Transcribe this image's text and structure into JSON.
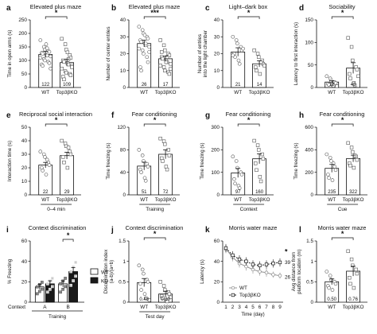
{
  "chart_data": [
    {
      "id": "a",
      "panel_letter": "a",
      "type": "bar",
      "title": "Elevated plus maze",
      "ylabel": "Time in open arms (s)",
      "ylim": [
        0,
        250
      ],
      "yticks": [
        0,
        50,
        100,
        150,
        200,
        250
      ],
      "categories": [
        "WT",
        "Top3βKO"
      ],
      "values": [
        122,
        92
      ],
      "errors": [
        11,
        13
      ],
      "n": [
        "122",
        "109"
      ],
      "colors": [
        "#ffffff",
        "#ffffff"
      ],
      "significance": "*",
      "points": [
        [
          175,
          150,
          140,
          135,
          132,
          128,
          125,
          120,
          118,
          115,
          110,
          105,
          100,
          95,
          90,
          85,
          80,
          160,
          145,
          70
        ],
        [
          180,
          160,
          140,
          120,
          110,
          100,
          95,
          90,
          85,
          80,
          70,
          60,
          55,
          50,
          45,
          40,
          30,
          130,
          105,
          75
        ]
      ]
    },
    {
      "id": "b",
      "panel_letter": "b",
      "type": "bar",
      "title": "Elevated plus maze",
      "ylabel": "Number of center entries",
      "ylim": [
        0,
        40
      ],
      "yticks": [
        0,
        10,
        20,
        30,
        40
      ],
      "categories": [
        "WT",
        "Top3βKO"
      ],
      "values": [
        26,
        17
      ],
      "errors": [
        2,
        1.5
      ],
      "n": [
        "26",
        "17"
      ],
      "colors": [
        "#ffffff",
        "#ffffff"
      ],
      "significance": "***",
      "points": [
        [
          36,
          34,
          32,
          30,
          29,
          28,
          27,
          26,
          25,
          24,
          23,
          22,
          20,
          18,
          15,
          12,
          10,
          31,
          26,
          21
        ],
        [
          28,
          25,
          22,
          20,
          19,
          18,
          17,
          16,
          15,
          14,
          13,
          12,
          10,
          9,
          8,
          21,
          17,
          15,
          18,
          11
        ]
      ]
    },
    {
      "id": "c",
      "panel_letter": "c",
      "type": "bar",
      "title": "Light–dark box",
      "ylabel": "Number of entries into the light chamber",
      "ylim": [
        0,
        40
      ],
      "yticks": [
        0,
        10,
        20,
        30,
        40
      ],
      "categories": [
        "WT",
        "Top3βKO"
      ],
      "values": [
        21,
        14
      ],
      "errors": [
        2.5,
        1.8
      ],
      "n": [
        "21",
        "14"
      ],
      "colors": [
        "#ffffff",
        "#ffffff"
      ],
      "significance": "*",
      "points": [
        [
          30,
          28,
          26,
          24,
          22,
          20,
          18,
          16,
          14,
          23,
          19
        ],
        [
          22,
          20,
          18,
          16,
          14,
          12,
          10,
          8,
          15,
          13
        ]
      ]
    },
    {
      "id": "d",
      "panel_letter": "d",
      "type": "bar",
      "title": "Sociability",
      "ylabel": "Latency to first interaction (s)",
      "ylim": [
        0,
        150
      ],
      "yticks": [
        0,
        50,
        100,
        150
      ],
      "categories": [
        "WT",
        "Top3βKO"
      ],
      "values": [
        12,
        43
      ],
      "errors": [
        3,
        12
      ],
      "n": [
        "12",
        "43"
      ],
      "colors": [
        "#ffffff",
        "#ffffff"
      ],
      "significance": "*",
      "points": [
        [
          25,
          20,
          15,
          12,
          10,
          8,
          6,
          5,
          4,
          3
        ],
        [
          110,
          90,
          60,
          45,
          40,
          30,
          20,
          10,
          5,
          25
        ]
      ]
    },
    {
      "id": "e",
      "panel_letter": "e",
      "type": "bar",
      "title": "Reciprocal social interaction",
      "ylabel": "Interaction time (s)",
      "ylim": [
        0,
        50
      ],
      "yticks": [
        0,
        10,
        20,
        30,
        40,
        50
      ],
      "categories": [
        "WT",
        "Top3βKO"
      ],
      "values": [
        22,
        29
      ],
      "errors": [
        2,
        2.5
      ],
      "n": [
        "22",
        "29"
      ],
      "colors": [
        "#ffffff",
        "#ffffff"
      ],
      "significance": "*",
      "xlabel": "0–4 min",
      "points": [
        [
          32,
          30,
          28,
          24,
          22,
          20,
          18,
          15,
          26
        ],
        [
          40,
          38,
          36,
          32,
          30,
          28,
          24,
          20,
          35
        ]
      ]
    },
    {
      "id": "f",
      "panel_letter": "f",
      "type": "bar",
      "title": "Fear conditioning",
      "ylabel": "Time freezing (s)",
      "ylim": [
        0,
        120
      ],
      "yticks": [
        0,
        40,
        80,
        120
      ],
      "categories": [
        "WT",
        "Top3βKO"
      ],
      "values": [
        51,
        72
      ],
      "errors": [
        7,
        8
      ],
      "n": [
        "51",
        "72"
      ],
      "colors": [
        "#ffffff",
        "#ffffff"
      ],
      "significance": "*",
      "xlabel": "Training",
      "points": [
        [
          80,
          70,
          60,
          55,
          50,
          45,
          40,
          30,
          25
        ],
        [
          100,
          95,
          90,
          80,
          70,
          65,
          60,
          50,
          45
        ]
      ]
    },
    {
      "id": "g",
      "panel_letter": "g",
      "type": "bar",
      "title": "Fear conditioning",
      "ylabel": "Time freezing (s)",
      "ylim": [
        0,
        300
      ],
      "yticks": [
        0,
        100,
        200,
        300
      ],
      "categories": [
        "WT",
        "Top3βKO"
      ],
      "values": [
        97,
        160
      ],
      "errors": [
        20,
        22
      ],
      "n": [
        "97",
        "160"
      ],
      "colors": [
        "#ffffff",
        "#ffffff"
      ],
      "significance": "*",
      "xlabel": "Context",
      "points": [
        [
          170,
          150,
          120,
          100,
          90,
          70,
          50,
          40,
          30
        ],
        [
          240,
          220,
          200,
          180,
          160,
          140,
          110,
          80,
          60
        ]
      ]
    },
    {
      "id": "h",
      "panel_letter": "h",
      "type": "bar",
      "title": "Fear conditioning",
      "ylabel": "Time freezing (s)",
      "ylim": [
        0,
        600
      ],
      "yticks": [
        0,
        200,
        400,
        600
      ],
      "categories": [
        "WT",
        "Top3βKO"
      ],
      "values": [
        235,
        322
      ],
      "errors": [
        35,
        30
      ],
      "n": [
        "235",
        "322"
      ],
      "colors": [
        "#ffffff",
        "#ffffff"
      ],
      "significance": "*",
      "xlabel": "Cue",
      "points": [
        [
          360,
          330,
          300,
          250,
          220,
          180,
          150,
          130,
          280
        ],
        [
          460,
          420,
          380,
          340,
          310,
          280,
          260,
          240,
          350
        ]
      ]
    },
    {
      "id": "i",
      "panel_letter": "i",
      "type": "bar",
      "title": "Context discrimination",
      "ylabel": "% Freezing",
      "ylim": [
        0,
        60
      ],
      "yticks": [
        0,
        20,
        40,
        60
      ],
      "context_label": "Context",
      "xlabel": "Training",
      "significance": "*",
      "groups": [
        {
          "label": "A",
          "values": [
            15,
            18
          ],
          "errors": [
            2.5,
            3
          ]
        },
        {
          "label": "B",
          "values": [
            18,
            30
          ],
          "errors": [
            3,
            4
          ]
        }
      ],
      "series": [
        {
          "name": "WT",
          "color": "#ffffff"
        },
        {
          "name": "KO",
          "color": "#1a1a1a"
        }
      ]
    },
    {
      "id": "j",
      "panel_letter": "j",
      "type": "bar",
      "title": "Context discrimination",
      "ylabel": "Discrimination index (a-b)/(a+b)",
      "ylim": [
        0,
        1.5
      ],
      "yticks": [
        0,
        0.5,
        1,
        1.5
      ],
      "categories": [
        "WT",
        "Top3βKO"
      ],
      "values": [
        0.48,
        0.2
      ],
      "errors": [
        0.1,
        0.07
      ],
      "n": [
        "0.48",
        "0.20"
      ],
      "colors": [
        "#ffffff",
        "#ffffff"
      ],
      "significance": "*",
      "xlabel": "Test day",
      "points": [
        [
          0.9,
          0.8,
          0.7,
          0.55,
          0.5,
          0.45,
          0.3,
          0.2,
          0.1,
          0.05
        ],
        [
          0.5,
          0.4,
          0.3,
          0.25,
          0.2,
          0.15,
          0.1,
          0.05,
          0.02,
          0.12
        ]
      ]
    },
    {
      "id": "k",
      "panel_letter": "k",
      "type": "line",
      "title": "Morris water maze",
      "ylabel": "Latency (s)",
      "xlabel": "Time (day)",
      "ylim": [
        0,
        60
      ],
      "yticks": [
        0,
        20,
        40,
        60
      ],
      "x": [
        1,
        2,
        3,
        4,
        5,
        6,
        7,
        8,
        9
      ],
      "significance": "*",
      "end_labels": [
        "39",
        "26"
      ],
      "series": [
        {
          "name": "WT",
          "values": [
            52,
            44,
            38,
            35,
            32,
            30,
            29,
            27,
            26
          ],
          "errors": [
            4,
            4,
            4,
            4,
            4,
            4,
            4,
            3,
            3
          ],
          "marker": "circle"
        },
        {
          "name": "Top3βKO",
          "values": [
            53,
            46,
            42,
            40,
            37,
            36,
            37,
            38,
            39
          ],
          "errors": [
            4,
            4,
            4,
            4,
            4,
            4,
            4,
            4,
            4
          ],
          "marker": "square"
        }
      ]
    },
    {
      "id": "l",
      "panel_letter": "l",
      "type": "bar",
      "title": "Morris water maze",
      "ylabel": "Avg distance from platform location (m)",
      "ylim": [
        0,
        1.5
      ],
      "yticks": [
        0,
        0.5,
        1,
        1.5
      ],
      "categories": [
        "WT",
        "Top3βKO"
      ],
      "values": [
        0.5,
        0.76
      ],
      "errors": [
        0.07,
        0.12
      ],
      "n": [
        "0.50",
        "0.76"
      ],
      "colors": [
        "#ffffff",
        "#ffffff"
      ],
      "significance": "*",
      "points": [
        [
          0.75,
          0.65,
          0.55,
          0.5,
          0.45,
          0.4,
          0.35,
          0.3
        ],
        [
          1.25,
          1.05,
          0.9,
          0.8,
          0.7,
          0.6,
          0.45,
          0.35
        ]
      ]
    }
  ]
}
